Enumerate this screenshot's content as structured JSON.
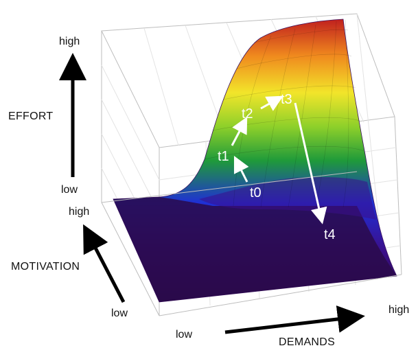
{
  "axes": {
    "effort": {
      "title": "EFFORT",
      "low": "low",
      "high": "high"
    },
    "motivation": {
      "title": "MOTIVATION",
      "low": "low",
      "high": "high"
    },
    "demands": {
      "title": "DEMANDS",
      "low": "low",
      "high": "high"
    }
  },
  "trajectory": {
    "points": [
      {
        "label": "t0"
      },
      {
        "label": "t1"
      },
      {
        "label": "t2"
      },
      {
        "label": "t3"
      },
      {
        "label": "t4"
      }
    ],
    "arrow_color": "#ffffff"
  },
  "surface": {
    "colormap": [
      "#2a0a4a",
      "#3b0f8a",
      "#1f2fd6",
      "#1f9a3a",
      "#8ed02a",
      "#f2e52a",
      "#f08a1e",
      "#c0201e"
    ]
  }
}
